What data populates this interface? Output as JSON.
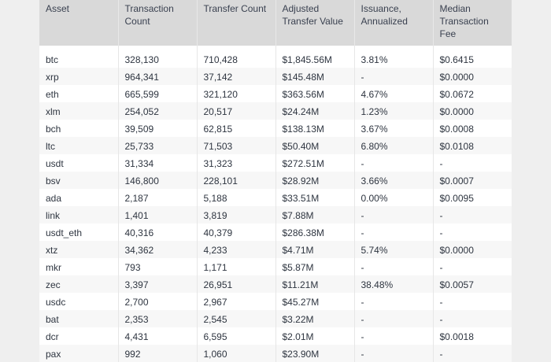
{
  "columns": [
    "Asset",
    "Transaction Count",
    "Transfer Count",
    "Adjusted Transfer Value",
    "Issuance, Annualized",
    "Median Transaction Fee"
  ],
  "rows": [
    [
      "btc",
      "328,130",
      "710,428",
      "$1,845.56M",
      "3.81%",
      "$0.6415"
    ],
    [
      "xrp",
      "964,341",
      "37,142",
      "$145.48M",
      "-",
      "$0.0000"
    ],
    [
      "eth",
      "665,599",
      "321,120",
      "$363.56M",
      "4.67%",
      "$0.0672"
    ],
    [
      "xlm",
      "254,052",
      "20,517",
      "$24.24M",
      "1.23%",
      "$0.0000"
    ],
    [
      "bch",
      "39,509",
      "62,815",
      "$138.13M",
      "3.67%",
      "$0.0008"
    ],
    [
      "ltc",
      "25,733",
      "71,503",
      "$50.40M",
      "6.80%",
      "$0.0108"
    ],
    [
      "usdt",
      "31,334",
      "31,323",
      "$272.51M",
      "-",
      "-"
    ],
    [
      "bsv",
      "146,800",
      "228,101",
      "$28.92M",
      "3.66%",
      "$0.0007"
    ],
    [
      "ada",
      "2,187",
      "5,188",
      "$33.51M",
      "0.00%",
      "$0.0095"
    ],
    [
      "link",
      "1,401",
      "3,819",
      "$7.88M",
      "-",
      "-"
    ],
    [
      "usdt_eth",
      "40,316",
      "40,379",
      "$286.38M",
      "-",
      "-"
    ],
    [
      "xtz",
      "34,362",
      "4,233",
      "$4.71M",
      "5.74%",
      "$0.0000"
    ],
    [
      "mkr",
      "793",
      "1,171",
      "$5.87M",
      "-",
      "-"
    ],
    [
      "zec",
      "3,397",
      "26,951",
      "$11.21M",
      "38.48%",
      "$0.0057"
    ],
    [
      "usdc",
      "2,700",
      "2,967",
      "$45.27M",
      "-",
      "-"
    ],
    [
      "bat",
      "2,353",
      "2,545",
      "$3.22M",
      "-",
      "-"
    ],
    [
      "dcr",
      "4,431",
      "6,595",
      "$2.01M",
      "-",
      "$0.0018"
    ],
    [
      "pax",
      "992",
      "1,060",
      "$23.90M",
      "-",
      "-"
    ]
  ]
}
